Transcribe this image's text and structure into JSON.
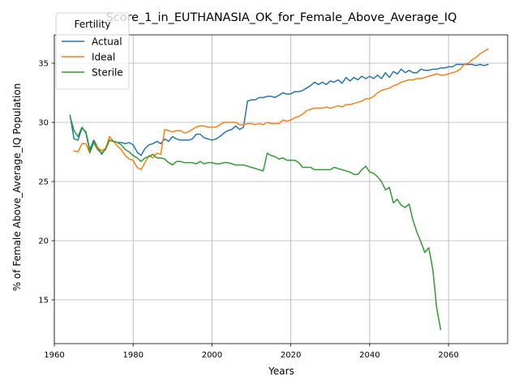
{
  "chart_data": {
    "type": "line",
    "title": "Score_1_in_EUTHANASIA_OK_for_Female_Above_Average_IQ",
    "xlabel": "Years",
    "ylabel": "% of Female Above_Average_IQ Population",
    "xlim": [
      1960,
      2075
    ],
    "ylim": [
      11.3,
      37.4
    ],
    "x_ticks": [
      "1960",
      "1980",
      "2000",
      "2020",
      "2040",
      "2060"
    ],
    "y_ticks": [
      "15",
      "20",
      "25",
      "30",
      "35"
    ],
    "grid": true,
    "legend": {
      "title": "Fertility",
      "placement": "top-left"
    },
    "series": [
      {
        "name": "Actual",
        "color": "#1f77b4",
        "points": [
          [
            1964,
            30.6
          ],
          [
            1965,
            28.6
          ],
          [
            1966,
            28.5
          ],
          [
            1967,
            29.5
          ],
          [
            1968,
            29.2
          ],
          [
            1969,
            27.7
          ],
          [
            1970,
            28.5
          ],
          [
            1971,
            27.9
          ],
          [
            1972,
            27.3
          ],
          [
            1973,
            27.8
          ],
          [
            1974,
            28.5
          ],
          [
            1975,
            28.4
          ],
          [
            1976,
            28.3
          ],
          [
            1977,
            28.3
          ],
          [
            1978,
            28.2
          ],
          [
            1979,
            28.3
          ],
          [
            1980,
            28.1
          ],
          [
            1981,
            27.5
          ],
          [
            1982,
            27.2
          ],
          [
            1983,
            27.8
          ],
          [
            1984,
            28.1
          ],
          [
            1985,
            28.2
          ],
          [
            1986,
            28.4
          ],
          [
            1987,
            28.2
          ],
          [
            1988,
            28.6
          ],
          [
            1989,
            28.4
          ],
          [
            1990,
            28.8
          ],
          [
            1991,
            28.6
          ],
          [
            1992,
            28.5
          ],
          [
            1993,
            28.5
          ],
          [
            1994,
            28.5
          ],
          [
            1995,
            28.6
          ],
          [
            1996,
            29.0
          ],
          [
            1997,
            29.0
          ],
          [
            1998,
            28.7
          ],
          [
            1999,
            28.6
          ],
          [
            2000,
            28.5
          ],
          [
            2001,
            28.6
          ],
          [
            2002,
            28.8
          ],
          [
            2003,
            29.1
          ],
          [
            2004,
            29.3
          ],
          [
            2005,
            29.4
          ],
          [
            2006,
            29.7
          ],
          [
            2007,
            29.4
          ],
          [
            2008,
            29.6
          ],
          [
            2009,
            31.8
          ],
          [
            2010,
            31.9
          ],
          [
            2011,
            31.9
          ],
          [
            2012,
            32.1
          ],
          [
            2013,
            32.1
          ],
          [
            2014,
            32.2
          ],
          [
            2015,
            32.2
          ],
          [
            2016,
            32.1
          ],
          [
            2017,
            32.3
          ],
          [
            2018,
            32.5
          ],
          [
            2019,
            32.4
          ],
          [
            2020,
            32.4
          ],
          [
            2021,
            32.6
          ],
          [
            2022,
            32.6
          ],
          [
            2023,
            32.7
          ],
          [
            2024,
            32.9
          ],
          [
            2025,
            33.1
          ],
          [
            2026,
            33.4
          ],
          [
            2027,
            33.2
          ],
          [
            2028,
            33.4
          ],
          [
            2029,
            33.2
          ],
          [
            2030,
            33.5
          ],
          [
            2031,
            33.4
          ],
          [
            2032,
            33.6
          ],
          [
            2033,
            33.3
          ],
          [
            2034,
            33.8
          ],
          [
            2035,
            33.5
          ],
          [
            2036,
            33.8
          ],
          [
            2037,
            33.6
          ],
          [
            2038,
            33.9
          ],
          [
            2039,
            33.7
          ],
          [
            2040,
            33.9
          ],
          [
            2041,
            33.7
          ],
          [
            2042,
            34.0
          ],
          [
            2043,
            33.7
          ],
          [
            2044,
            34.2
          ],
          [
            2045,
            33.8
          ],
          [
            2046,
            34.3
          ],
          [
            2047,
            34.1
          ],
          [
            2048,
            34.5
          ],
          [
            2049,
            34.2
          ],
          [
            2050,
            34.4
          ],
          [
            2051,
            34.2
          ],
          [
            2052,
            34.2
          ],
          [
            2053,
            34.5
          ],
          [
            2054,
            34.4
          ],
          [
            2055,
            34.4
          ],
          [
            2056,
            34.5
          ],
          [
            2057,
            34.5
          ],
          [
            2058,
            34.6
          ],
          [
            2059,
            34.6
          ],
          [
            2060,
            34.7
          ],
          [
            2061,
            34.7
          ],
          [
            2062,
            34.9
          ],
          [
            2063,
            34.9
          ],
          [
            2064,
            34.9
          ],
          [
            2065,
            34.9
          ],
          [
            2066,
            34.9
          ],
          [
            2067,
            34.8
          ],
          [
            2068,
            34.9
          ],
          [
            2069,
            34.8
          ],
          [
            2070,
            34.9
          ]
        ]
      },
      {
        "name": "Ideal",
        "color": "#ff7f0e",
        "points": [
          [
            1965,
            27.6
          ],
          [
            1966,
            27.5
          ],
          [
            1967,
            28.2
          ],
          [
            1968,
            28.2
          ],
          [
            1969,
            27.4
          ],
          [
            1970,
            28.3
          ],
          [
            1971,
            27.9
          ],
          [
            1972,
            27.6
          ],
          [
            1973,
            27.8
          ],
          [
            1974,
            28.8
          ],
          [
            1975,
            28.4
          ],
          [
            1976,
            28.0
          ],
          [
            1977,
            27.7
          ],
          [
            1978,
            27.2
          ],
          [
            1979,
            26.9
          ],
          [
            1980,
            26.8
          ],
          [
            1981,
            26.2
          ],
          [
            1982,
            26.0
          ],
          [
            1983,
            26.6
          ],
          [
            1984,
            27.2
          ],
          [
            1985,
            27.0
          ],
          [
            1986,
            27.4
          ],
          [
            1987,
            27.3
          ],
          [
            1988,
            29.4
          ],
          [
            1989,
            29.3
          ],
          [
            1990,
            29.2
          ],
          [
            1991,
            29.3
          ],
          [
            1992,
            29.3
          ],
          [
            1993,
            29.1
          ],
          [
            1994,
            29.2
          ],
          [
            1995,
            29.4
          ],
          [
            1996,
            29.6
          ],
          [
            1997,
            29.7
          ],
          [
            1998,
            29.7
          ],
          [
            1999,
            29.6
          ],
          [
            2000,
            29.6
          ],
          [
            2001,
            29.6
          ],
          [
            2002,
            29.8
          ],
          [
            2003,
            30.0
          ],
          [
            2004,
            30.0
          ],
          [
            2005,
            30.0
          ],
          [
            2006,
            30.0
          ],
          [
            2007,
            29.8
          ],
          [
            2008,
            29.8
          ],
          [
            2009,
            29.9
          ],
          [
            2010,
            29.9
          ],
          [
            2011,
            29.8
          ],
          [
            2012,
            29.9
          ],
          [
            2013,
            29.8
          ],
          [
            2014,
            30.0
          ],
          [
            2015,
            29.9
          ],
          [
            2016,
            29.9
          ],
          [
            2017,
            29.9
          ],
          [
            2018,
            30.2
          ],
          [
            2019,
            30.1
          ],
          [
            2020,
            30.2
          ],
          [
            2021,
            30.4
          ],
          [
            2022,
            30.5
          ],
          [
            2023,
            30.7
          ],
          [
            2024,
            31.0
          ],
          [
            2025,
            31.1
          ],
          [
            2026,
            31.2
          ],
          [
            2027,
            31.2
          ],
          [
            2028,
            31.2
          ],
          [
            2029,
            31.3
          ],
          [
            2030,
            31.2
          ],
          [
            2031,
            31.3
          ],
          [
            2032,
            31.4
          ],
          [
            2033,
            31.3
          ],
          [
            2034,
            31.5
          ],
          [
            2035,
            31.5
          ],
          [
            2036,
            31.6
          ],
          [
            2037,
            31.7
          ],
          [
            2038,
            31.8
          ],
          [
            2039,
            32.0
          ],
          [
            2040,
            32.0
          ],
          [
            2041,
            32.2
          ],
          [
            2042,
            32.5
          ],
          [
            2043,
            32.7
          ],
          [
            2044,
            32.8
          ],
          [
            2045,
            32.9
          ],
          [
            2046,
            33.1
          ],
          [
            2047,
            33.2
          ],
          [
            2048,
            33.4
          ],
          [
            2049,
            33.5
          ],
          [
            2050,
            33.6
          ],
          [
            2051,
            33.6
          ],
          [
            2052,
            33.7
          ],
          [
            2053,
            33.7
          ],
          [
            2054,
            33.8
          ],
          [
            2055,
            33.9
          ],
          [
            2056,
            34.0
          ],
          [
            2057,
            34.1
          ],
          [
            2058,
            34.0
          ],
          [
            2059,
            34.0
          ],
          [
            2060,
            34.1
          ],
          [
            2061,
            34.2
          ],
          [
            2062,
            34.3
          ],
          [
            2063,
            34.5
          ],
          [
            2064,
            34.9
          ],
          [
            2065,
            35.0
          ],
          [
            2066,
            35.3
          ],
          [
            2067,
            35.5
          ],
          [
            2068,
            35.8
          ],
          [
            2069,
            36.0
          ],
          [
            2070,
            36.2
          ]
        ]
      },
      {
        "name": "Sterile",
        "color": "#2ca02c",
        "points": [
          [
            1964,
            30.5
          ],
          [
            1965,
            29.3
          ],
          [
            1966,
            28.8
          ],
          [
            1967,
            29.6
          ],
          [
            1968,
            29.1
          ],
          [
            1969,
            27.5
          ],
          [
            1970,
            28.3
          ],
          [
            1971,
            27.7
          ],
          [
            1972,
            27.4
          ],
          [
            1973,
            27.7
          ],
          [
            1974,
            28.5
          ],
          [
            1975,
            28.4
          ],
          [
            1976,
            28.3
          ],
          [
            1977,
            28.1
          ],
          [
            1978,
            27.7
          ],
          [
            1979,
            27.5
          ],
          [
            1980,
            27.2
          ],
          [
            1981,
            27.0
          ],
          [
            1982,
            26.7
          ],
          [
            1983,
            27.0
          ],
          [
            1984,
            27.1
          ],
          [
            1985,
            27.3
          ],
          [
            1986,
            27.0
          ],
          [
            1987,
            27.0
          ],
          [
            1988,
            26.9
          ],
          [
            1989,
            26.6
          ],
          [
            1990,
            26.4
          ],
          [
            1991,
            26.7
          ],
          [
            1992,
            26.7
          ],
          [
            1993,
            26.6
          ],
          [
            1994,
            26.6
          ],
          [
            1995,
            26.6
          ],
          [
            1996,
            26.5
          ],
          [
            1997,
            26.7
          ],
          [
            1998,
            26.5
          ],
          [
            1999,
            26.6
          ],
          [
            2000,
            26.6
          ],
          [
            2001,
            26.5
          ],
          [
            2002,
            26.5
          ],
          [
            2003,
            26.6
          ],
          [
            2004,
            26.6
          ],
          [
            2005,
            26.5
          ],
          [
            2006,
            26.4
          ],
          [
            2007,
            26.4
          ],
          [
            2008,
            26.4
          ],
          [
            2009,
            26.3
          ],
          [
            2010,
            26.2
          ],
          [
            2011,
            26.1
          ],
          [
            2012,
            26.0
          ],
          [
            2013,
            25.9
          ],
          [
            2014,
            27.4
          ],
          [
            2015,
            27.2
          ],
          [
            2016,
            27.1
          ],
          [
            2017,
            26.9
          ],
          [
            2018,
            27.0
          ],
          [
            2019,
            26.8
          ],
          [
            2020,
            26.8
          ],
          [
            2021,
            26.8
          ],
          [
            2022,
            26.6
          ],
          [
            2023,
            26.2
          ],
          [
            2024,
            26.2
          ],
          [
            2025,
            26.2
          ],
          [
            2026,
            26.0
          ],
          [
            2027,
            26.0
          ],
          [
            2028,
            26.0
          ],
          [
            2029,
            26.0
          ],
          [
            2030,
            26.0
          ],
          [
            2031,
            26.2
          ],
          [
            2032,
            26.1
          ],
          [
            2033,
            26.0
          ],
          [
            2034,
            25.9
          ],
          [
            2035,
            25.8
          ],
          [
            2036,
            25.6
          ],
          [
            2037,
            25.6
          ],
          [
            2038,
            26.0
          ],
          [
            2039,
            26.3
          ],
          [
            2040,
            25.8
          ],
          [
            2041,
            25.7
          ],
          [
            2042,
            25.4
          ],
          [
            2043,
            25.0
          ],
          [
            2044,
            24.3
          ],
          [
            2045,
            24.5
          ],
          [
            2046,
            23.2
          ],
          [
            2047,
            23.5
          ],
          [
            2048,
            23.0
          ],
          [
            2049,
            22.8
          ],
          [
            2050,
            23.1
          ],
          [
            2051,
            21.7
          ],
          [
            2052,
            20.7
          ],
          [
            2053,
            19.9
          ],
          [
            2054,
            19.0
          ],
          [
            2055,
            19.4
          ],
          [
            2056,
            17.6
          ],
          [
            2057,
            14.3
          ],
          [
            2058,
            12.5
          ]
        ]
      }
    ]
  }
}
